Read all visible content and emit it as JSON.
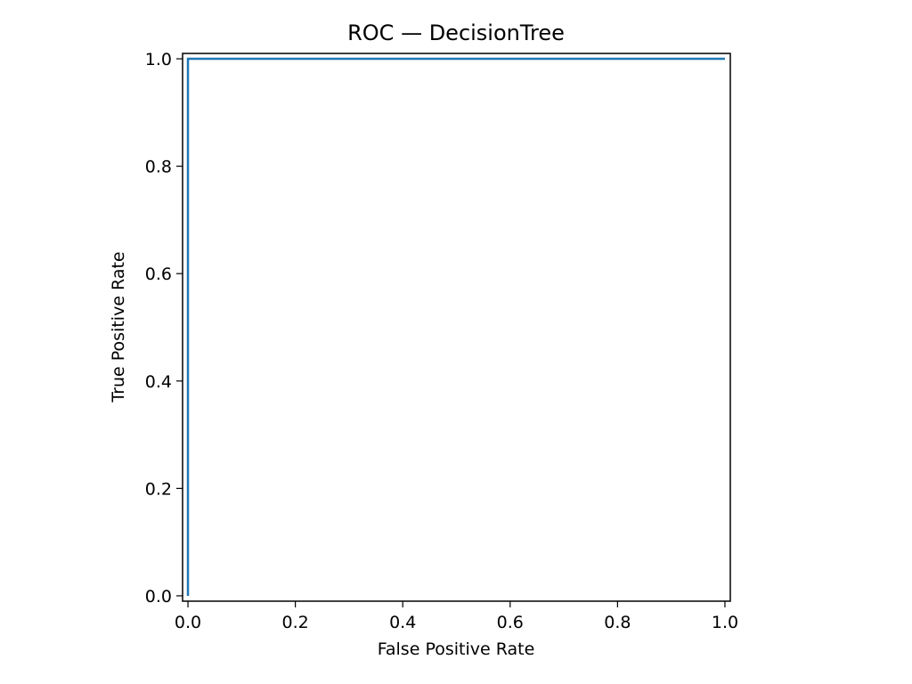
{
  "chart_data": {
    "type": "line",
    "title": "ROC — DecisionTree",
    "xlabel": "False Positive Rate",
    "ylabel": "True Positive Rate",
    "xlim": [
      -0.01,
      1.01
    ],
    "ylim": [
      -0.01,
      1.01
    ],
    "xticks": [
      0.0,
      0.2,
      0.4,
      0.6,
      0.8,
      1.0
    ],
    "xtick_labels": [
      "0.0",
      "0.2",
      "0.4",
      "0.6",
      "0.8",
      "1.0"
    ],
    "yticks": [
      0.0,
      0.2,
      0.4,
      0.6,
      0.8,
      1.0
    ],
    "ytick_labels": [
      "0.0",
      "0.2",
      "0.4",
      "0.6",
      "0.8",
      "1.0"
    ],
    "grid": false,
    "series": [
      {
        "color": "#1f77b4",
        "x": [
          0.0,
          0.0,
          1.0
        ],
        "y": [
          0.0,
          1.0,
          1.0
        ]
      }
    ]
  }
}
